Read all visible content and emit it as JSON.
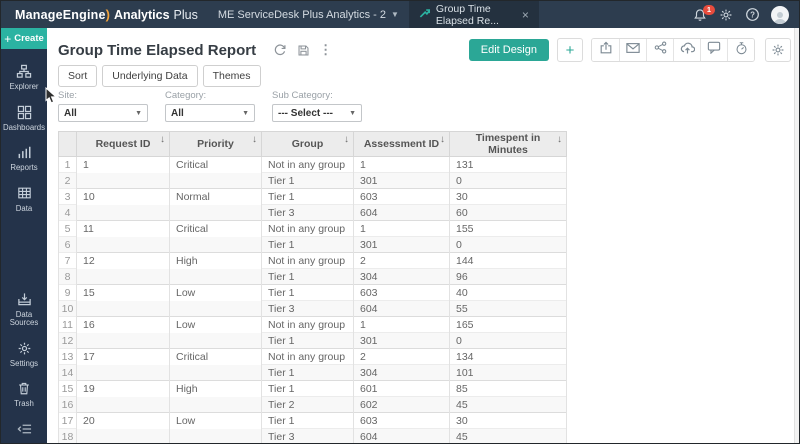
{
  "topbar": {
    "logo": {
      "brand": "ManageEngine",
      "swoosh": ")",
      "product": "Analytics",
      "suffix": "Plus"
    },
    "workspace": "ME ServiceDesk Plus Analytics - 2",
    "tab": {
      "label": "Group Time Elapsed Re...",
      "close": "×"
    },
    "notification_count": "1",
    "right_icons": [
      "bell",
      "gear",
      "help",
      "avatar"
    ]
  },
  "sidebar": {
    "create_label": "Create",
    "items_top": [
      {
        "icon": "explorer",
        "label": "Explorer"
      },
      {
        "icon": "dashboards",
        "label": "Dashboards"
      },
      {
        "icon": "reports",
        "label": "Reports"
      },
      {
        "icon": "data",
        "label": "Data"
      }
    ],
    "items_bottom": [
      {
        "icon": "datasources",
        "label": "Data Sources"
      },
      {
        "icon": "settings",
        "label": "Settings"
      },
      {
        "icon": "trash",
        "label": "Trash"
      }
    ]
  },
  "header": {
    "title": "Group Time Elapsed Report",
    "title_icons": [
      "refresh",
      "save",
      "kebab"
    ]
  },
  "toolbar": {
    "edit_design": "Edit Design",
    "plus": "+",
    "action_group": [
      "export",
      "mail",
      "share",
      "upload",
      "comment",
      "timer"
    ],
    "settings_icon": "gear",
    "view_buttons": [
      "Sort",
      "Underlying Data",
      "Themes"
    ]
  },
  "filters": [
    {
      "label": "Site:",
      "value": "All"
    },
    {
      "label": "Category:",
      "value": "All"
    },
    {
      "label": "Sub Category:",
      "value": "--- Select ---"
    }
  ],
  "table": {
    "sort_glyph": "↓",
    "columns": [
      "Request ID",
      "Priority",
      "Group",
      "Assessment ID",
      "Timespent in Minutes"
    ],
    "rows": [
      {
        "num": "1",
        "request_id": "1",
        "priority": "Critical",
        "group": "Not in any group",
        "assessment_id": "1",
        "timespent": "131"
      },
      {
        "num": "2",
        "request_id": "",
        "priority": "",
        "group": "Tier 1",
        "assessment_id": "301",
        "timespent": "0"
      },
      {
        "num": "3",
        "request_id": "10",
        "priority": "Normal",
        "group": "Tier 1",
        "assessment_id": "603",
        "timespent": "30"
      },
      {
        "num": "4",
        "request_id": "",
        "priority": "",
        "group": "Tier 3",
        "assessment_id": "604",
        "timespent": "60"
      },
      {
        "num": "5",
        "request_id": "11",
        "priority": "Critical",
        "group": "Not in any group",
        "assessment_id": "1",
        "timespent": "155"
      },
      {
        "num": "6",
        "request_id": "",
        "priority": "",
        "group": "Tier 1",
        "assessment_id": "301",
        "timespent": "0"
      },
      {
        "num": "7",
        "request_id": "12",
        "priority": "High",
        "group": "Not in any group",
        "assessment_id": "2",
        "timespent": "144"
      },
      {
        "num": "8",
        "request_id": "",
        "priority": "",
        "group": "Tier 1",
        "assessment_id": "304",
        "timespent": "96"
      },
      {
        "num": "9",
        "request_id": "15",
        "priority": "Low",
        "group": "Tier 1",
        "assessment_id": "603",
        "timespent": "40"
      },
      {
        "num": "10",
        "request_id": "",
        "priority": "",
        "group": "Tier 3",
        "assessment_id": "604",
        "timespent": "55"
      },
      {
        "num": "11",
        "request_id": "16",
        "priority": "Low",
        "group": "Not in any group",
        "assessment_id": "1",
        "timespent": "165"
      },
      {
        "num": "12",
        "request_id": "",
        "priority": "",
        "group": "Tier 1",
        "assessment_id": "301",
        "timespent": "0"
      },
      {
        "num": "13",
        "request_id": "17",
        "priority": "Critical",
        "group": "Not in any group",
        "assessment_id": "2",
        "timespent": "134"
      },
      {
        "num": "14",
        "request_id": "",
        "priority": "",
        "group": "Tier 1",
        "assessment_id": "304",
        "timespent": "101"
      },
      {
        "num": "15",
        "request_id": "19",
        "priority": "High",
        "group": "Tier 1",
        "assessment_id": "601",
        "timespent": "85"
      },
      {
        "num": "16",
        "request_id": "",
        "priority": "",
        "group": "Tier 2",
        "assessment_id": "602",
        "timespent": "45"
      },
      {
        "num": "17",
        "request_id": "20",
        "priority": "Low",
        "group": "Tier 1",
        "assessment_id": "603",
        "timespent": "30"
      },
      {
        "num": "18",
        "request_id": "",
        "priority": "",
        "group": "Tier 3",
        "assessment_id": "604",
        "timespent": "45"
      }
    ]
  },
  "colors": {
    "accent": "#2ba796",
    "topbar": "#2d3d4f",
    "sidebar": "#24334a",
    "badge": "#e84c3d"
  }
}
